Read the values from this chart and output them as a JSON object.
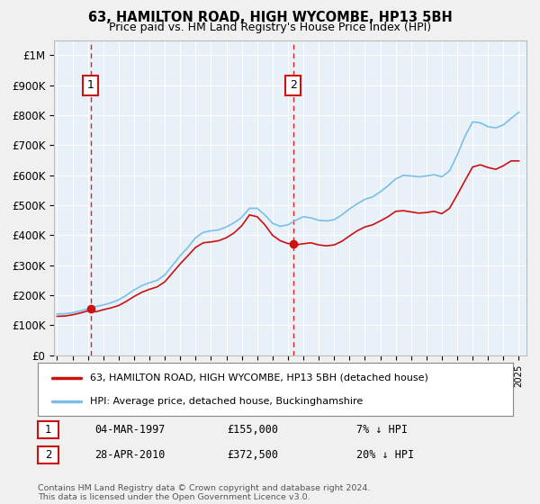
{
  "title": "63, HAMILTON ROAD, HIGH WYCOMBE, HP13 5BH",
  "subtitle": "Price paid vs. HM Land Registry's House Price Index (HPI)",
  "ylim": [
    0,
    1050000
  ],
  "yticks": [
    0,
    100000,
    200000,
    300000,
    400000,
    500000,
    600000,
    700000,
    800000,
    900000,
    1000000
  ],
  "ytick_labels": [
    "£0",
    "£100K",
    "£200K",
    "£300K",
    "£400K",
    "£500K",
    "£600K",
    "£700K",
    "£800K",
    "£900K",
    "£1M"
  ],
  "xlim_start": 1994.8,
  "xlim_end": 2025.5,
  "hpi_color": "#7bbfe8",
  "price_color": "#cc1111",
  "marker_color": "#cc1111",
  "vline_color": "#dd2222",
  "legend_label_red": "63, HAMILTON ROAD, HIGH WYCOMBE, HP13 5BH (detached house)",
  "legend_label_blue": "HPI: Average price, detached house, Buckinghamshire",
  "purchase1_date": "04-MAR-1997",
  "purchase1_price": 155000,
  "purchase1_label": "£155,000",
  "purchase1_pct": "7% ↓ HPI",
  "purchase1_x": 1997.17,
  "purchase2_date": "28-APR-2010",
  "purchase2_price": 372500,
  "purchase2_label": "£372,500",
  "purchase2_pct": "20% ↓ HPI",
  "purchase2_x": 2010.33,
  "footer": "Contains HM Land Registry data © Crown copyright and database right 2024.\nThis data is licensed under the Open Government Licence v3.0.",
  "bg_color": "#f0f0f0",
  "plot_bg": "#e8f0f8",
  "grid_color": "#ffffff",
  "years_hpi": [
    1995.0,
    1995.5,
    1996.0,
    1996.5,
    1997.0,
    1997.5,
    1998.0,
    1998.5,
    1999.0,
    1999.5,
    2000.0,
    2000.5,
    2001.0,
    2001.5,
    2002.0,
    2002.5,
    2003.0,
    2003.5,
    2004.0,
    2004.5,
    2005.0,
    2005.5,
    2006.0,
    2006.5,
    2007.0,
    2007.5,
    2008.0,
    2008.5,
    2009.0,
    2009.5,
    2010.0,
    2010.5,
    2011.0,
    2011.5,
    2012.0,
    2012.5,
    2013.0,
    2013.5,
    2014.0,
    2014.5,
    2015.0,
    2015.5,
    2016.0,
    2016.5,
    2017.0,
    2017.5,
    2018.0,
    2018.5,
    2019.0,
    2019.5,
    2020.0,
    2020.5,
    2021.0,
    2021.5,
    2022.0,
    2022.5,
    2023.0,
    2023.5,
    2024.0,
    2024.5,
    2025.0
  ],
  "values_hpi": [
    138000,
    138500,
    142000,
    148000,
    155000,
    162000,
    168000,
    175000,
    185000,
    200000,
    218000,
    232000,
    242000,
    250000,
    268000,
    300000,
    332000,
    360000,
    392000,
    410000,
    415000,
    418000,
    428000,
    442000,
    460000,
    490000,
    490000,
    468000,
    440000,
    430000,
    435000,
    450000,
    462000,
    458000,
    450000,
    448000,
    452000,
    468000,
    488000,
    505000,
    520000,
    528000,
    545000,
    565000,
    588000,
    600000,
    598000,
    595000,
    598000,
    602000,
    595000,
    615000,
    668000,
    730000,
    778000,
    775000,
    762000,
    758000,
    768000,
    790000,
    810000
  ],
  "years_red": [
    1995.0,
    1995.5,
    1996.0,
    1996.5,
    1997.0,
    1997.17,
    1997.5,
    1998.0,
    1998.5,
    1999.0,
    1999.5,
    2000.0,
    2000.5,
    2001.0,
    2001.5,
    2002.0,
    2002.5,
    2003.0,
    2003.5,
    2004.0,
    2004.5,
    2005.0,
    2005.5,
    2006.0,
    2006.5,
    2007.0,
    2007.5,
    2008.0,
    2008.5,
    2009.0,
    2009.5,
    2010.0,
    2010.33,
    2010.5,
    2011.0,
    2011.5,
    2012.0,
    2012.5,
    2013.0,
    2013.5,
    2014.0,
    2014.5,
    2015.0,
    2015.5,
    2016.0,
    2016.5,
    2017.0,
    2017.5,
    2018.0,
    2018.5,
    2019.0,
    2019.5,
    2020.0,
    2020.5,
    2021.0,
    2021.5,
    2022.0,
    2022.5,
    2023.0,
    2023.5,
    2024.0,
    2024.5,
    2025.0
  ],
  "values_red": [
    130000,
    131000,
    135000,
    141000,
    148000,
    155000,
    145000,
    152000,
    158000,
    166000,
    180000,
    196000,
    210000,
    220000,
    228000,
    245000,
    275000,
    305000,
    332000,
    360000,
    375000,
    378000,
    382000,
    392000,
    408000,
    432000,
    468000,
    462000,
    435000,
    400000,
    382000,
    372500,
    372500,
    368000,
    372000,
    375000,
    368000,
    365000,
    368000,
    380000,
    398000,
    415000,
    428000,
    435000,
    448000,
    462000,
    480000,
    482000,
    478000,
    474000,
    476000,
    480000,
    472000,
    490000,
    535000,
    582000,
    628000,
    635000,
    626000,
    620000,
    632000,
    648000,
    648000
  ]
}
